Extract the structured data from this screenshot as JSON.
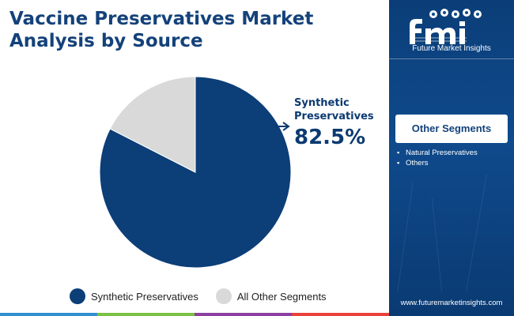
{
  "title_line1": "Vaccine Preservatives Market",
  "title_line2": "Analysis by Source",
  "chart_data": {
    "type": "pie",
    "title": "Vaccine Preservatives Market Analysis by Source",
    "slices": [
      {
        "label": "Synthetic Preservatives",
        "value": 82.5,
        "color": "#0c3e78"
      },
      {
        "label": "All Other Segments",
        "value": 17.5,
        "color": "#d9d9d9"
      }
    ],
    "legend_position": "bottom"
  },
  "callout": {
    "label": "Synthetic Preservatives",
    "value": "82.5%"
  },
  "legend": [
    {
      "label": "Synthetic Preservatives",
      "color": "#0c3e78"
    },
    {
      "label": "All Other Segments",
      "color": "#d9d9d9"
    }
  ],
  "sidebar": {
    "logo_text": "fmi",
    "logo_subtitle": "Future Market Insights",
    "segments_title": "Other Segments",
    "segments": [
      "Natural Preservatives",
      "Others"
    ],
    "website": "www.futuremarketinsights.com"
  },
  "bottom_bar_colors": [
    "#2f8fcf",
    "#7ac143",
    "#8b3fa0",
    "#e8423b"
  ]
}
